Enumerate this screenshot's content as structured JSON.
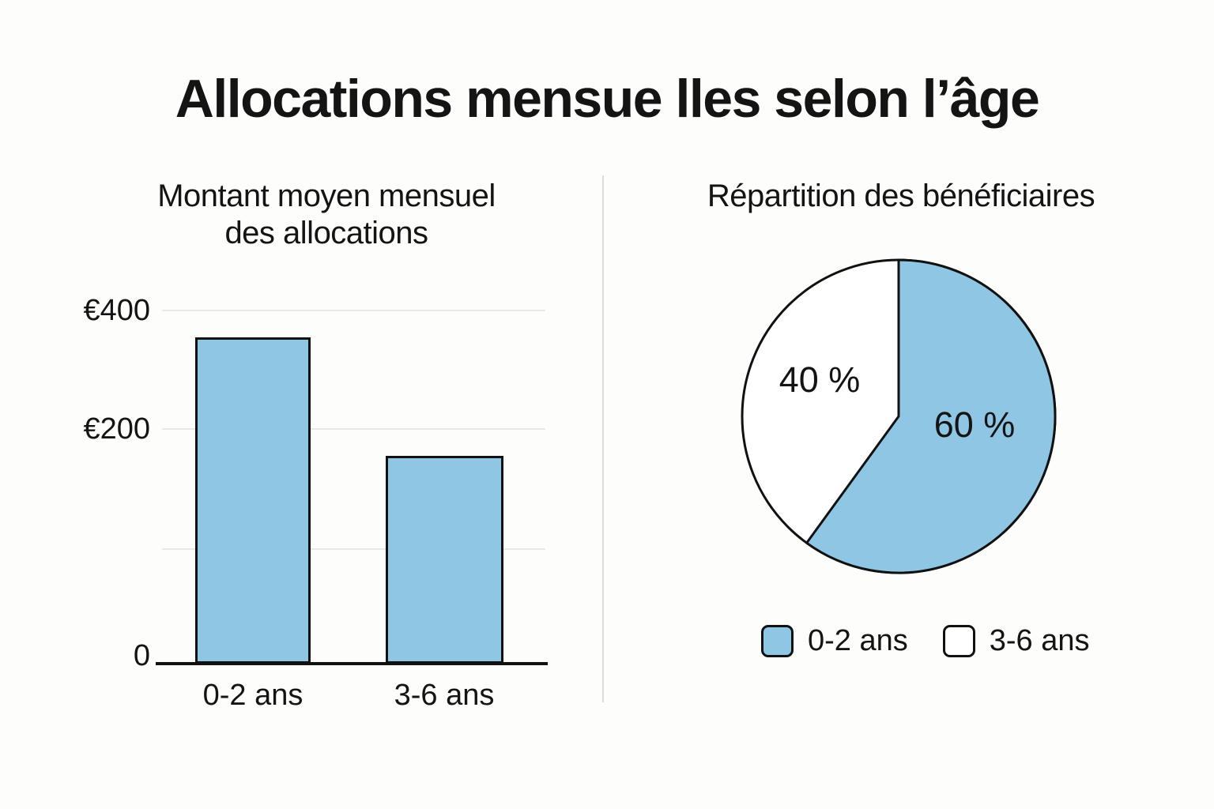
{
  "page": {
    "title": "Allocations mensue lles selon l’âge",
    "background": "#fdfdfc",
    "text_color": "#141414"
  },
  "chart_data": [
    {
      "type": "bar",
      "title": "Montant moyen mensuel des allocations",
      "title_lines": [
        "Montant moyen mensuel",
        "des allocations"
      ],
      "categories": [
        "0-2 ans",
        "3-6 ans"
      ],
      "values": [
        370,
        235
      ],
      "ylim": [
        0,
        400
      ],
      "ytick_labels": [
        "€400",
        "€200",
        "",
        "0"
      ],
      "currency": "EUR",
      "grid": true,
      "xlabel": "",
      "ylabel": "",
      "bar_color": "#8ec6e4",
      "bar_border_color": "#111111"
    },
    {
      "type": "pie",
      "title": "Répartition des bénéficiaires",
      "labels": [
        "0-2 ans",
        "3-6 ans"
      ],
      "values": [
        60,
        40
      ],
      "slice_labels": [
        "60 %",
        "40 %"
      ],
      "slice_colors": [
        "#8ec6e4",
        "#ffffff"
      ],
      "outline_color": "#111111",
      "start_angle_deg": 0,
      "direction": "clockwise",
      "legend_position": "bottom",
      "legend": [
        {
          "label": "0-2 ans",
          "color": "#8ec6e4"
        },
        {
          "label": "3-6 ans",
          "color": "#ffffff"
        }
      ]
    }
  ]
}
